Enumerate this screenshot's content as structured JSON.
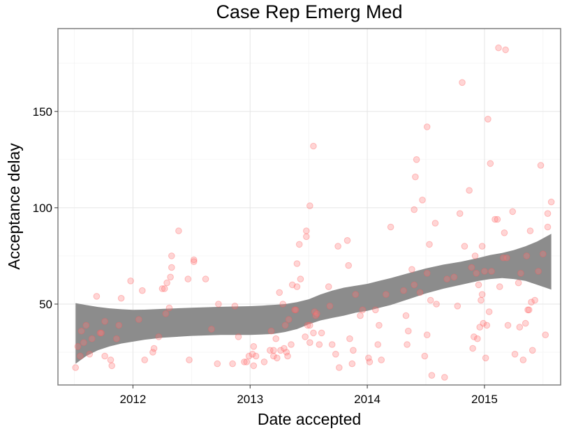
{
  "chart_data": {
    "type": "scatter",
    "title": "Case Rep Emerg Med",
    "xlabel": "Date accepted",
    "ylabel": "Acceptance delay",
    "xlim": [
      2011.36,
      2015.65
    ],
    "ylim": [
      8,
      193
    ],
    "x_ticks": [
      2012,
      2013,
      2014,
      2015
    ],
    "x_tick_labels": [
      "2012",
      "2013",
      "2014",
      "2015"
    ],
    "y_ticks": [
      50,
      100,
      150
    ],
    "y_tick_labels": [
      "50",
      "100",
      "150"
    ],
    "grid": true,
    "point_color": "#ff7b7b",
    "band_color": "#8c8c8c",
    "points": [
      [
        2011.51,
        17
      ],
      [
        2011.53,
        28
      ],
      [
        2011.55,
        23
      ],
      [
        2011.56,
        36
      ],
      [
        2011.58,
        30
      ],
      [
        2011.6,
        39
      ],
      [
        2011.63,
        24
      ],
      [
        2011.65,
        32
      ],
      [
        2011.69,
        54
      ],
      [
        2011.72,
        35
      ],
      [
        2011.73,
        35
      ],
      [
        2011.76,
        41
      ],
      [
        2011.76,
        23
      ],
      [
        2011.81,
        21
      ],
      [
        2011.82,
        18
      ],
      [
        2011.86,
        32
      ],
      [
        2011.88,
        39
      ],
      [
        2011.9,
        53
      ],
      [
        2011.98,
        62
      ],
      [
        2012.05,
        42
      ],
      [
        2012.08,
        57
      ],
      [
        2012.1,
        21
      ],
      [
        2012.17,
        25
      ],
      [
        2012.18,
        27
      ],
      [
        2012.22,
        33
      ],
      [
        2012.25,
        58
      ],
      [
        2012.27,
        58
      ],
      [
        2012.28,
        45
      ],
      [
        2012.29,
        61
      ],
      [
        2012.31,
        48
      ],
      [
        2012.32,
        64
      ],
      [
        2012.33,
        75
      ],
      [
        2012.33,
        69
      ],
      [
        2012.39,
        88
      ],
      [
        2012.47,
        63
      ],
      [
        2012.48,
        21
      ],
      [
        2012.52,
        73
      ],
      [
        2012.52,
        72
      ],
      [
        2012.62,
        63
      ],
      [
        2012.67,
        37
      ],
      [
        2012.72,
        19
      ],
      [
        2012.73,
        50
      ],
      [
        2012.85,
        19
      ],
      [
        2012.87,
        49
      ],
      [
        2012.9,
        33
      ],
      [
        2012.95,
        20
      ],
      [
        2012.97,
        20
      ],
      [
        2012.99,
        23
      ],
      [
        2013.02,
        24
      ],
      [
        2013.03,
        28
      ],
      [
        2013.03,
        18
      ],
      [
        2013.05,
        23
      ],
      [
        2013.12,
        20
      ],
      [
        2013.17,
        26
      ],
      [
        2013.18,
        36
      ],
      [
        2013.2,
        26
      ],
      [
        2013.2,
        23
      ],
      [
        2013.22,
        32
      ],
      [
        2013.23,
        22
      ],
      [
        2013.25,
        56
      ],
      [
        2013.26,
        26
      ],
      [
        2013.28,
        50
      ],
      [
        2013.29,
        27
      ],
      [
        2013.3,
        39
      ],
      [
        2013.31,
        25
      ],
      [
        2013.32,
        23
      ],
      [
        2013.33,
        42
      ],
      [
        2013.35,
        29
      ],
      [
        2013.36,
        60
      ],
      [
        2013.38,
        47
      ],
      [
        2013.39,
        47
      ],
      [
        2013.4,
        59
      ],
      [
        2013.4,
        71
      ],
      [
        2013.42,
        81
      ],
      [
        2013.43,
        63
      ],
      [
        2013.47,
        33
      ],
      [
        2013.48,
        85
      ],
      [
        2013.48,
        88
      ],
      [
        2013.49,
        39
      ],
      [
        2013.51,
        39
      ],
      [
        2013.51,
        101
      ],
      [
        2013.51,
        30
      ],
      [
        2013.54,
        35
      ],
      [
        2013.54,
        132
      ],
      [
        2013.55,
        46
      ],
      [
        2013.56,
        44
      ],
      [
        2013.57,
        45
      ],
      [
        2013.59,
        29
      ],
      [
        2013.61,
        35
      ],
      [
        2013.67,
        59
      ],
      [
        2013.68,
        49
      ],
      [
        2013.7,
        29
      ],
      [
        2013.73,
        24
      ],
      [
        2013.75,
        80
      ],
      [
        2013.76,
        17
      ],
      [
        2013.83,
        83
      ],
      [
        2013.84,
        70
      ],
      [
        2013.85,
        32
      ],
      [
        2013.87,
        19
      ],
      [
        2013.88,
        26
      ],
      [
        2013.9,
        55
      ],
      [
        2013.94,
        44
      ],
      [
        2013.96,
        47
      ],
      [
        2014.01,
        22
      ],
      [
        2014.02,
        20
      ],
      [
        2014.07,
        47
      ],
      [
        2014.09,
        29
      ],
      [
        2014.1,
        39
      ],
      [
        2014.12,
        21
      ],
      [
        2014.16,
        55
      ],
      [
        2014.2,
        90
      ],
      [
        2014.31,
        57
      ],
      [
        2014.33,
        44
      ],
      [
        2014.34,
        29
      ],
      [
        2014.35,
        36
      ],
      [
        2014.38,
        68
      ],
      [
        2014.4,
        60
      ],
      [
        2014.4,
        99
      ],
      [
        2014.41,
        116
      ],
      [
        2014.42,
        125
      ],
      [
        2014.45,
        56
      ],
      [
        2014.47,
        104
      ],
      [
        2014.49,
        23
      ],
      [
        2014.51,
        66
      ],
      [
        2014.51,
        34
      ],
      [
        2014.51,
        142
      ],
      [
        2014.53,
        81
      ],
      [
        2014.54,
        52
      ],
      [
        2014.55,
        13
      ],
      [
        2014.58,
        92
      ],
      [
        2014.59,
        50
      ],
      [
        2014.66,
        12
      ],
      [
        2014.68,
        63
      ],
      [
        2014.74,
        64
      ],
      [
        2014.77,
        49
      ],
      [
        2014.79,
        97
      ],
      [
        2014.81,
        165
      ],
      [
        2014.83,
        80
      ],
      [
        2014.87,
        109
      ],
      [
        2014.89,
        69
      ],
      [
        2014.9,
        27
      ],
      [
        2014.91,
        33
      ],
      [
        2014.92,
        75
      ],
      [
        2014.93,
        66
      ],
      [
        2014.94,
        32
      ],
      [
        2014.95,
        60
      ],
      [
        2014.96,
        38
      ],
      [
        2014.97,
        52
      ],
      [
        2014.98,
        80
      ],
      [
        2014.98,
        55
      ],
      [
        2014.99,
        40
      ],
      [
        2015.0,
        67
      ],
      [
        2015.01,
        22
      ],
      [
        2015.02,
        39
      ],
      [
        2015.03,
        146
      ],
      [
        2015.04,
        46
      ],
      [
        2015.05,
        123
      ],
      [
        2015.06,
        67
      ],
      [
        2015.09,
        94
      ],
      [
        2015.11,
        94
      ],
      [
        2015.12,
        183
      ],
      [
        2015.13,
        59
      ],
      [
        2015.16,
        74
      ],
      [
        2015.17,
        87
      ],
      [
        2015.18,
        182
      ],
      [
        2015.19,
        74
      ],
      [
        2015.2,
        39
      ],
      [
        2015.24,
        98
      ],
      [
        2015.26,
        24
      ],
      [
        2015.29,
        61
      ],
      [
        2015.3,
        38
      ],
      [
        2015.31,
        66
      ],
      [
        2015.33,
        21
      ],
      [
        2015.35,
        40
      ],
      [
        2015.36,
        75
      ],
      [
        2015.37,
        47
      ],
      [
        2015.38,
        47
      ],
      [
        2015.39,
        88
      ],
      [
        2015.4,
        51
      ],
      [
        2015.41,
        26
      ],
      [
        2015.43,
        52
      ],
      [
        2015.46,
        67
      ],
      [
        2015.48,
        122
      ],
      [
        2015.5,
        76
      ],
      [
        2015.52,
        34
      ],
      [
        2015.54,
        97
      ],
      [
        2015.54,
        90
      ],
      [
        2015.57,
        103
      ]
    ],
    "band": {
      "x": [
        2011.51,
        2011.6,
        2011.7,
        2011.8,
        2011.9,
        2012.0,
        2012.1,
        2012.25,
        2012.5,
        2012.75,
        2013.0,
        2013.1,
        2013.2,
        2013.3,
        2013.4,
        2013.5,
        2013.6,
        2013.7,
        2013.8,
        2013.9,
        2014.0,
        2014.1,
        2014.2,
        2014.35,
        2014.5,
        2014.65,
        2014.8,
        2014.95,
        2015.05,
        2015.15,
        2015.25,
        2015.35,
        2015.45,
        2015.57
      ],
      "upper": [
        50.5,
        49.5,
        48.5,
        47.8,
        47.3,
        47.0,
        47.1,
        47.5,
        48.1,
        48.6,
        48.9,
        49.2,
        49.6,
        50.0,
        51.0,
        52.5,
        55.0,
        57.0,
        58.5,
        59.5,
        60.5,
        62.0,
        63.5,
        66.0,
        68.5,
        70.5,
        72.0,
        74.0,
        75.5,
        76.5,
        78.0,
        80.0,
        82.5,
        86.5
      ],
      "lower": [
        19.0,
        23.0,
        26.0,
        28.0,
        29.5,
        30.5,
        31.5,
        32.5,
        33.5,
        34.0,
        34.0,
        34.2,
        34.5,
        35.5,
        37.0,
        39.5,
        41.5,
        42.8,
        44.0,
        45.5,
        46.5,
        48.0,
        49.5,
        52.5,
        55.5,
        58.0,
        60.0,
        62.0,
        63.0,
        63.5,
        63.0,
        62.0,
        60.0,
        57.5
      ]
    }
  }
}
